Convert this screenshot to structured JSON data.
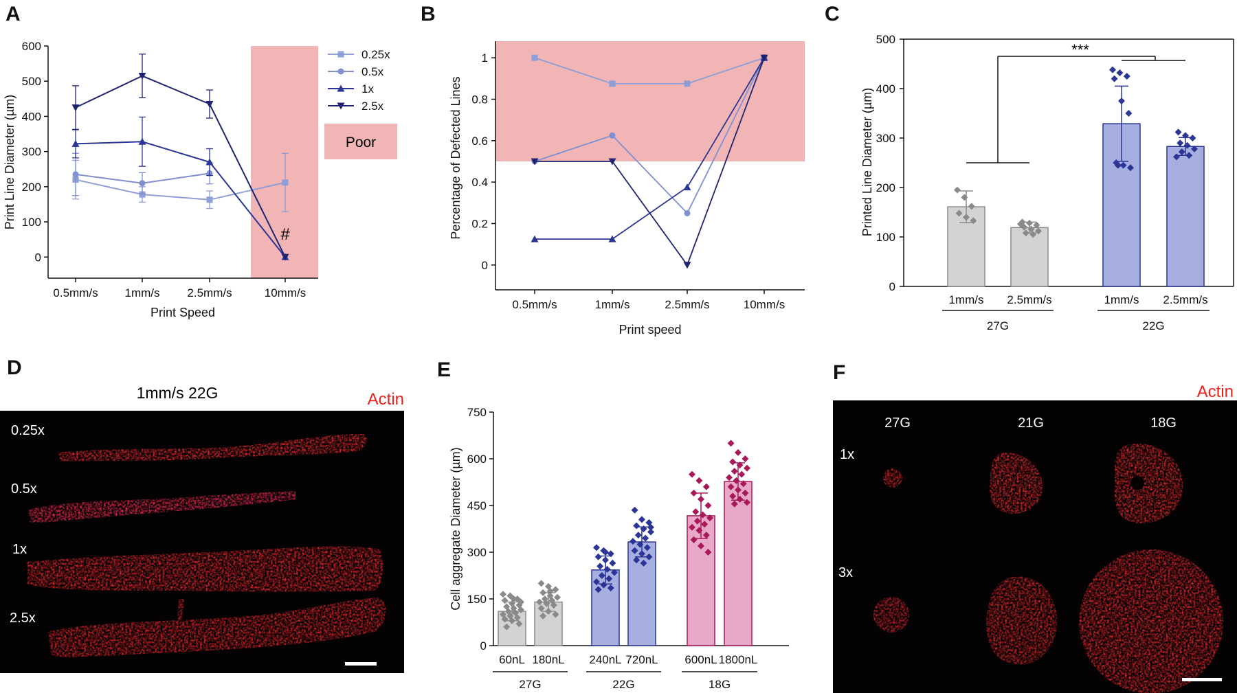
{
  "figure": {
    "panel_letters": [
      "A",
      "B",
      "C",
      "D",
      "E",
      "F"
    ]
  },
  "colors": {
    "c025": "#8e9ed6",
    "c05": "#7f8fd0",
    "c1": "#2b3596",
    "c25": "#1e2470",
    "poor_shade": "#f1b5b5",
    "grey_bar": "#d3d3d3",
    "grey_edge": "#8c8c8c",
    "grey_point": "#8a8a8a",
    "blue_bar": "#a7afe0",
    "blue_edge": "#2b3596",
    "blue_point": "#2b3596",
    "pink_bar": "#e8a9c8",
    "pink_edge": "#a8195a",
    "pink_point": "#a8195a",
    "actin": "#e8231e"
  },
  "chart_data": [
    {
      "panel": "A",
      "type": "line",
      "title": "",
      "xlabel": "Print Speed",
      "ylabel": "Print Line Diameter (µm)",
      "categories": [
        "0.5mm/s",
        "1mm/s",
        "2.5mm/s",
        "10mm/s"
      ],
      "ylim": [
        -60,
        600
      ],
      "yticks": [
        0,
        100,
        200,
        300,
        400,
        500,
        600
      ],
      "series": [
        {
          "name": "0.25x",
          "marker": "square",
          "values": [
            220,
            178,
            163,
            212
          ],
          "errors": [
            55,
            22,
            25,
            83
          ]
        },
        {
          "name": "0.5x",
          "marker": "circle",
          "values": [
            235,
            210,
            238,
            null
          ],
          "errors": [
            60,
            30,
            30,
            null
          ]
        },
        {
          "name": "1x",
          "marker": "triangle-up",
          "values": [
            322,
            328,
            270,
            0
          ],
          "errors": [
            40,
            70,
            38,
            0
          ]
        },
        {
          "name": "2.5x",
          "marker": "triangle-down",
          "values": [
            425,
            515,
            435,
            0
          ],
          "errors": [
            62,
            62,
            40,
            0
          ]
        }
      ],
      "shaded_region": {
        "category": "10mm/s",
        "label": "Poor"
      },
      "annotation": "#"
    },
    {
      "panel": "B",
      "type": "line",
      "title": "",
      "xlabel": "Print speed",
      "ylabel": "Percentage of Defected Lines",
      "categories": [
        "0.5mm/s",
        "1mm/s",
        "2.5mm/s",
        "10mm/s"
      ],
      "ylim": [
        -0.12,
        1.08
      ],
      "yticks": [
        0,
        0.2,
        0.4,
        0.6,
        0.8,
        1
      ],
      "ytick_labels": [
        "0",
        "0.2",
        "0.4",
        "0.6",
        "0.8",
        "1"
      ],
      "shaded_above": 0.5,
      "series": [
        {
          "name": "0.25x",
          "marker": "square",
          "values": [
            1,
            0.875,
            0.875,
            1
          ]
        },
        {
          "name": "0.5x",
          "marker": "circle",
          "values": [
            0.5,
            0.625,
            0.25,
            1
          ]
        },
        {
          "name": "1x",
          "marker": "triangle-up",
          "values": [
            0.125,
            0.125,
            0.375,
            1
          ]
        },
        {
          "name": "2.5x",
          "marker": "triangle-down",
          "values": [
            0.5,
            0.5,
            0,
            1
          ]
        }
      ]
    },
    {
      "panel": "C",
      "type": "bar",
      "title": "",
      "xlabel": "",
      "ylabel": "Printed Line Diameter (µm)",
      "ylim": [
        0,
        500
      ],
      "yticks": [
        0,
        100,
        200,
        300,
        400,
        500
      ],
      "groups": [
        {
          "label": "27G",
          "color": "grey",
          "bars": [
            {
              "label": "1mm/s",
              "mean": 161,
              "sd": 32,
              "points": [
                195,
                180,
                162,
                148,
                140,
                133
              ]
            },
            {
              "label": "2.5mm/s",
              "mean": 119,
              "sd": 11,
              "points": [
                130,
                128,
                124,
                120,
                116,
                112,
                108,
                105,
                126
              ]
            }
          ]
        },
        {
          "label": "22G",
          "color": "blue",
          "bars": [
            {
              "label": "1mm/s",
              "mean": 329,
              "sd": 76,
              "points": [
                438,
                432,
                425,
                420,
                375,
                350,
                250,
                245,
                240,
                245
              ]
            },
            {
              "label": "2.5mm/s",
              "mean": 283,
              "sd": 18,
              "points": [
                312,
                305,
                300,
                290,
                285,
                278,
                272,
                265,
                262
              ]
            }
          ]
        }
      ],
      "significance": "***"
    },
    {
      "panel": "E",
      "type": "bar",
      "title": "",
      "xlabel": "",
      "ylabel": "Cell aggregate Diameter (µm)",
      "ylim": [
        0,
        750
      ],
      "yticks": [
        0,
        150,
        300,
        450,
        600,
        750
      ],
      "groups": [
        {
          "label": "27G",
          "color": "grey",
          "bars": [
            {
              "label": "60nL",
              "mean": 110,
              "sd": 30,
              "points": [
                165,
                160,
                150,
                145,
                135,
                130,
                125,
                120,
                115,
                110,
                105,
                100,
                95,
                90,
                85,
                80,
                70,
                60,
                150,
                140
              ]
            },
            {
              "label": "180nL",
              "mean": 140,
              "sd": 30,
              "points": [
                200,
                190,
                180,
                170,
                160,
                155,
                150,
                145,
                140,
                135,
                130,
                120,
                110,
                100,
                95,
                175
              ]
            }
          ]
        },
        {
          "label": "22G",
          "color": "blue",
          "bars": [
            {
              "label": "240nL",
              "mean": 243,
              "sd": 45,
              "points": [
                315,
                305,
                295,
                285,
                275,
                265,
                255,
                245,
                235,
                225,
                215,
                205,
                195,
                185,
                180,
                300
              ]
            },
            {
              "label": "720nL",
              "mean": 333,
              "sd": 48,
              "points": [
                435,
                405,
                395,
                385,
                375,
                365,
                355,
                345,
                335,
                325,
                315,
                305,
                295,
                285,
                275,
                265,
                380
              ]
            }
          ]
        },
        {
          "label": "18G",
          "color": "pink",
          "bars": [
            {
              "label": "600nL",
              "mean": 417,
              "sd": 73,
              "points": [
                550,
                530,
                510,
                490,
                470,
                450,
                430,
                420,
                410,
                400,
                390,
                380,
                370,
                355,
                340,
                320,
                300
              ]
            },
            {
              "label": "1800nL",
              "mean": 527,
              "sd": 60,
              "points": [
                650,
                620,
                600,
                590,
                580,
                570,
                560,
                550,
                540,
                530,
                520,
                510,
                500,
                490,
                480,
                470,
                460,
                455
              ]
            }
          ]
        }
      ]
    }
  ],
  "panel_d": {
    "title": "1mm/s 22G",
    "stain": "Actin",
    "rows": [
      "0.25x",
      "0.5x",
      "1x",
      "2.5x"
    ]
  },
  "panel_f": {
    "stain": "Actin",
    "columns": [
      "27G",
      "21G",
      "18G"
    ],
    "rows": [
      "1x",
      "3x"
    ]
  }
}
